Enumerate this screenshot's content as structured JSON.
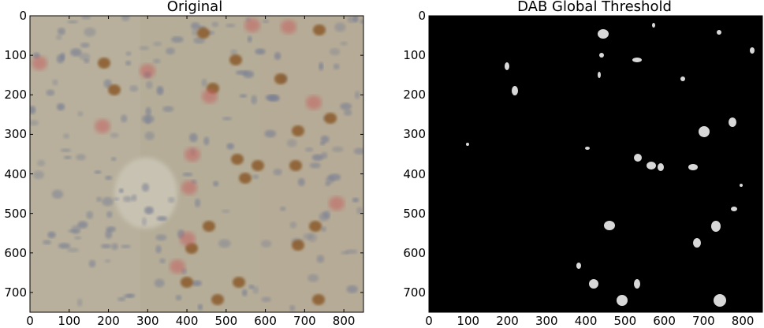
{
  "panels": [
    {
      "id": "original",
      "title": "Original",
      "x_ticks": [
        "0",
        "100",
        "200",
        "300",
        "400",
        "500",
        "600",
        "700",
        "800"
      ],
      "y_ticks": [
        "0",
        "100",
        "200",
        "300",
        "400",
        "500",
        "600",
        "700"
      ],
      "x_range": [
        0,
        850
      ],
      "y_range": [
        0,
        750
      ]
    },
    {
      "id": "dab-threshold",
      "title": "DAB Global Threshold",
      "x_ticks": [
        "0",
        "100",
        "200",
        "300",
        "400",
        "500",
        "600",
        "700",
        "800"
      ],
      "y_ticks": [
        "0",
        "100",
        "200",
        "300",
        "400",
        "500",
        "600",
        "700"
      ],
      "x_range": [
        0,
        850
      ],
      "y_range": [
        0,
        750
      ]
    }
  ],
  "colors": {
    "tissue_background": "#b8b09c",
    "nucleus_blue": "#7a8094",
    "nucleus_brown": "#8a5a2a",
    "stain_red": "#c46060",
    "threshold_background": "#000000",
    "threshold_blob": "#d8d8d8"
  }
}
